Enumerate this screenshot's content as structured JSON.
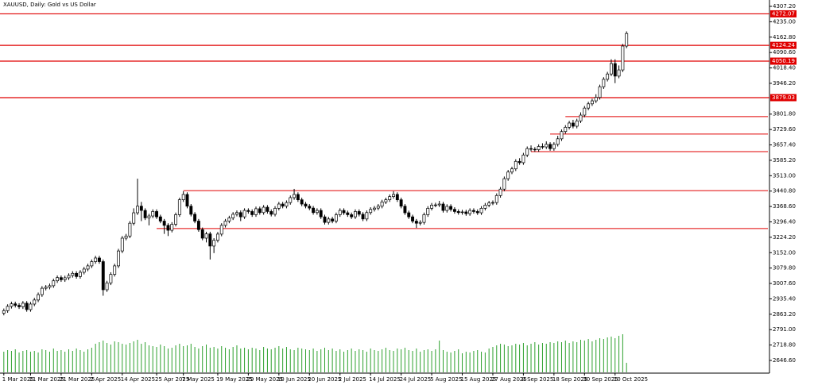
{
  "chart_data": {
    "type": "candlestick",
    "title": "XAUUSD, Daily:  Gold vs US Dollar",
    "xlim": [
      -1,
      200
    ],
    "ylim": [
      2587,
      4337
    ],
    "xticks": [
      {
        "value": 0,
        "label": "1 Mar 2025"
      },
      {
        "value": 7,
        "label": "11 Mar 2025"
      },
      {
        "value": 15,
        "label": "21 Mar 2025"
      },
      {
        "value": 23,
        "label": "2 Apr 2025"
      },
      {
        "value": 31,
        "label": "14 Apr 2025"
      },
      {
        "value": 40,
        "label": "25 Apr 2025"
      },
      {
        "value": 47,
        "label": "7 May 2025"
      },
      {
        "value": 56,
        "label": "19 May 2025"
      },
      {
        "value": 64,
        "label": "29 May 2025"
      },
      {
        "value": 72,
        "label": "10 Jun 2025"
      },
      {
        "value": 80,
        "label": "20 Jun 2025"
      },
      {
        "value": 88,
        "label": "2 Jul 2025"
      },
      {
        "value": 96,
        "label": "14 Jul 2025"
      },
      {
        "value": 104,
        "label": "24 Jul 2025"
      },
      {
        "value": 112,
        "label": "5 Aug 2025"
      },
      {
        "value": 120,
        "label": "15 Aug 2025"
      },
      {
        "value": 128,
        "label": "27 Aug 2025"
      },
      {
        "value": 136,
        "label": "8 Sep 2025"
      },
      {
        "value": 144,
        "label": "18 Sep 2025"
      },
      {
        "value": 152,
        "label": "30 Sep 2025"
      },
      {
        "value": 160,
        "label": "10 Oct 2025"
      }
    ],
    "yticks": [
      {
        "value": 4307.2,
        "label": "4307.20"
      },
      {
        "value": 4235,
        "label": "4235.00"
      },
      {
        "value": 4162.8,
        "label": "4162.80"
      },
      {
        "value": 4090.6,
        "label": "4090.60"
      },
      {
        "value": 4018.4,
        "label": "4018.40"
      },
      {
        "value": 3946.2,
        "label": "3946.20"
      },
      {
        "value": 3801.8,
        "label": "3801.80"
      },
      {
        "value": 3729.6,
        "label": "3729.60"
      },
      {
        "value": 3657.4,
        "label": "3657.40"
      },
      {
        "value": 3585.2,
        "label": "3585.20"
      },
      {
        "value": 3513,
        "label": "3513.00"
      },
      {
        "value": 3440.8,
        "label": "3440.80"
      },
      {
        "value": 3368.6,
        "label": "3368.60"
      },
      {
        "value": 3296.4,
        "label": "3296.40"
      },
      {
        "value": 3224.2,
        "label": "3224.20"
      },
      {
        "value": 3152,
        "label": "3152.00"
      },
      {
        "value": 3079.8,
        "label": "3079.80"
      },
      {
        "value": 3007.6,
        "label": "3007.60"
      },
      {
        "value": 2935.4,
        "label": "2935.40"
      },
      {
        "value": 2863.2,
        "label": "2863.20"
      },
      {
        "value": 2791,
        "label": "2791.00"
      },
      {
        "value": 2718.8,
        "label": "2718.80"
      },
      {
        "value": 2646.6,
        "label": "2646.60"
      }
    ],
    "up_color": "#ffffff",
    "down_color": "#000000",
    "volume_color": "#2ca02c",
    "level_color": "#e00000",
    "levels": [
      4272.07,
      4124.24,
      4050.19,
      3879.03
    ],
    "segments": [
      {
        "from": 147,
        "value": 3790
      },
      {
        "from": 143,
        "value": 3708
      },
      {
        "from": 138,
        "value": 3626
      },
      {
        "from": 47,
        "value": 3443
      },
      {
        "from": 40,
        "value": 3265
      }
    ],
    "open": [
      2868,
      2880,
      2900,
      2912,
      2905,
      2898,
      2915,
      2885,
      2911,
      2930,
      2955,
      2985,
      2990,
      2997,
      3020,
      3035,
      3025,
      3034,
      3045,
      3055,
      3040,
      3060,
      3075,
      3090,
      3110,
      3127,
      3110,
      2978,
      3010,
      3050,
      3090,
      3160,
      3220,
      3230,
      3290,
      3339,
      3370,
      3350,
      3315,
      3324,
      3345,
      3320,
      3300,
      3280,
      3257,
      3285,
      3330,
      3400,
      3425,
      3370,
      3332,
      3300,
      3260,
      3220,
      3240,
      3183,
      3210,
      3239,
      3280,
      3300,
      3315,
      3332,
      3340,
      3320,
      3350,
      3345,
      3330,
      3358,
      3340,
      3365,
      3345,
      3332,
      3360,
      3380,
      3370,
      3387,
      3410,
      3425,
      3400,
      3380,
      3370,
      3361,
      3340,
      3350,
      3320,
      3294,
      3310,
      3300,
      3330,
      3350,
      3339,
      3330,
      3320,
      3345,
      3332,
      3310,
      3340,
      3355,
      3361,
      3370,
      3390,
      3400,
      3415,
      3425,
      3400,
      3370,
      3339,
      3320,
      3300,
      3290,
      3294,
      3330,
      3360,
      3375,
      3376,
      3380,
      3350,
      3369,
      3355,
      3345,
      3340,
      3343,
      3335,
      3350,
      3345,
      3339,
      3360,
      3375,
      3385,
      3387,
      3420,
      3450,
      3499,
      3530,
      3545,
      3580,
      3574,
      3610,
      3640,
      3637,
      3635,
      3650,
      3648,
      3660,
      3640,
      3660,
      3686,
      3720,
      3740,
      3760,
      3745,
      3770,
      3797,
      3830,
      3850,
      3864,
      3880,
      3930,
      3965,
      3990,
      4039,
      3980,
      4009,
      4121
    ],
    "high": [
      2890,
      2910,
      2922,
      2922,
      2915,
      2925,
      2925,
      2921,
      2940,
      2965,
      2995,
      3000,
      3007,
      3030,
      3045,
      3045,
      3044,
      3055,
      3065,
      3065,
      3070,
      3085,
      3100,
      3120,
      3137,
      3137,
      3120,
      3020,
      3060,
      3100,
      3170,
      3230,
      3240,
      3300,
      3360,
      3499,
      3390,
      3360,
      3334,
      3355,
      3355,
      3330,
      3310,
      3290,
      3295,
      3340,
      3410,
      3440,
      3435,
      3380,
      3342,
      3310,
      3270,
      3250,
      3250,
      3220,
      3249,
      3290,
      3310,
      3325,
      3342,
      3350,
      3350,
      3360,
      3360,
      3355,
      3368,
      3368,
      3375,
      3375,
      3355,
      3370,
      3390,
      3390,
      3397,
      3420,
      3451,
      3435,
      3410,
      3390,
      3380,
      3371,
      3360,
      3360,
      3330,
      3320,
      3320,
      3340,
      3360,
      3360,
      3349,
      3340,
      3355,
      3355,
      3342,
      3350,
      3365,
      3371,
      3380,
      3400,
      3410,
      3425,
      3440,
      3435,
      3410,
      3380,
      3349,
      3330,
      3310,
      3304,
      3340,
      3370,
      3385,
      3386,
      3395,
      3390,
      3379,
      3379,
      3365,
      3355,
      3353,
      3353,
      3360,
      3360,
      3355,
      3370,
      3385,
      3395,
      3397,
      3430,
      3460,
      3509,
      3540,
      3555,
      3590,
      3595,
      3620,
      3650,
      3655,
      3647,
      3660,
      3665,
      3674,
      3670,
      3670,
      3700,
      3730,
      3750,
      3770,
      3775,
      3780,
      3810,
      3840,
      3860,
      3874,
      3895,
      3940,
      3975,
      4000,
      4059,
      4059,
      4030,
      4131,
      4190
    ],
    "low": [
      2858,
      2870,
      2890,
      2895,
      2888,
      2888,
      2875,
      2875,
      2901,
      2920,
      2945,
      2975,
      2980,
      2987,
      3010,
      3015,
      3015,
      3024,
      3035,
      3030,
      3030,
      3050,
      3065,
      3080,
      3100,
      3100,
      2950,
      2968,
      3000,
      3040,
      3080,
      3150,
      3210,
      3220,
      3280,
      3329,
      3300,
      3305,
      3280,
      3314,
      3310,
      3290,
      3240,
      3230,
      3247,
      3275,
      3320,
      3390,
      3360,
      3322,
      3290,
      3250,
      3210,
      3200,
      3120,
      3150,
      3200,
      3229,
      3270,
      3290,
      3305,
      3322,
      3300,
      3310,
      3335,
      3320,
      3320,
      3330,
      3330,
      3335,
      3322,
      3322,
      3350,
      3360,
      3360,
      3377,
      3400,
      3390,
      3370,
      3360,
      3351,
      3330,
      3330,
      3310,
      3284,
      3284,
      3290,
      3290,
      3320,
      3329,
      3320,
      3310,
      3310,
      3322,
      3300,
      3300,
      3330,
      3345,
      3351,
      3360,
      3380,
      3390,
      3405,
      3390,
      3360,
      3329,
      3310,
      3290,
      3268,
      3280,
      3284,
      3320,
      3350,
      3365,
      3366,
      3340,
      3340,
      3345,
      3335,
      3330,
      3330,
      3325,
      3325,
      3335,
      3329,
      3329,
      3350,
      3365,
      3375,
      3377,
      3410,
      3440,
      3489,
      3520,
      3535,
      3564,
      3564,
      3600,
      3627,
      3625,
      3625,
      3638,
      3638,
      3630,
      3630,
      3650,
      3676,
      3710,
      3730,
      3735,
      3735,
      3760,
      3787,
      3820,
      3840,
      3854,
      3870,
      3920,
      3955,
      3980,
      3947,
      3970,
      3999,
      4111
    ],
    "close": [
      2880,
      2900,
      2912,
      2905,
      2898,
      2915,
      2885,
      2911,
      2930,
      2955,
      2985,
      2990,
      2997,
      3020,
      3035,
      3025,
      3034,
      3045,
      3055,
      3040,
      3060,
      3075,
      3090,
      3110,
      3127,
      3110,
      2978,
      3010,
      3050,
      3090,
      3160,
      3220,
      3230,
      3290,
      3339,
      3370,
      3350,
      3315,
      3324,
      3345,
      3320,
      3300,
      3280,
      3257,
      3285,
      3330,
      3400,
      3425,
      3370,
      3332,
      3300,
      3260,
      3220,
      3240,
      3183,
      3210,
      3239,
      3280,
      3300,
      3315,
      3332,
      3340,
      3320,
      3350,
      3345,
      3330,
      3358,
      3340,
      3365,
      3345,
      3332,
      3360,
      3380,
      3370,
      3387,
      3410,
      3425,
      3400,
      3380,
      3370,
      3361,
      3340,
      3350,
      3320,
      3294,
      3310,
      3300,
      3330,
      3350,
      3339,
      3330,
      3320,
      3345,
      3332,
      3310,
      3340,
      3355,
      3361,
      3370,
      3390,
      3400,
      3415,
      3425,
      3400,
      3370,
      3339,
      3320,
      3300,
      3290,
      3294,
      3330,
      3360,
      3375,
      3376,
      3380,
      3350,
      3369,
      3355,
      3345,
      3340,
      3343,
      3335,
      3350,
      3345,
      3339,
      3360,
      3375,
      3385,
      3387,
      3420,
      3450,
      3499,
      3530,
      3545,
      3580,
      3574,
      3610,
      3640,
      3637,
      3635,
      3650,
      3648,
      3660,
      3640,
      3660,
      3686,
      3720,
      3740,
      3760,
      3745,
      3770,
      3797,
      3830,
      3850,
      3864,
      3880,
      3930,
      3965,
      3990,
      4039,
      3980,
      4009,
      4121,
      4180
    ],
    "volume": [
      26,
      28,
      27,
      29,
      25,
      27,
      28,
      26,
      27,
      25,
      29,
      28,
      26,
      30,
      27,
      28,
      26,
      29,
      27,
      30,
      28,
      26,
      29,
      31,
      36,
      38,
      40,
      37,
      35,
      39,
      38,
      36,
      35,
      37,
      39,
      41,
      36,
      38,
      34,
      33,
      32,
      35,
      33,
      30,
      31,
      34,
      36,
      33,
      34,
      36,
      32,
      30,
      33,
      35,
      31,
      32,
      30,
      33,
      31,
      29,
      32,
      34,
      30,
      31,
      29,
      31,
      30,
      28,
      32,
      30,
      29,
      31,
      33,
      30,
      32,
      29,
      28,
      31,
      30,
      29,
      28,
      30,
      27,
      29,
      31,
      28,
      30,
      27,
      29,
      26,
      28,
      30,
      27,
      29,
      28,
      26,
      30,
      28,
      27,
      29,
      31,
      28,
      27,
      30,
      29,
      31,
      28,
      27,
      30,
      26,
      28,
      29,
      27,
      29,
      40,
      28,
      26,
      25,
      27,
      29,
      24,
      26,
      25,
      27,
      28,
      26,
      25,
      30,
      32,
      34,
      36,
      35,
      33,
      34,
      36,
      35,
      37,
      34,
      36,
      38,
      35,
      37,
      36,
      38,
      37,
      39,
      38,
      40,
      37,
      39,
      38,
      41,
      40,
      42,
      39,
      41,
      43,
      42,
      44,
      45,
      43,
      46,
      48,
      12
    ]
  }
}
